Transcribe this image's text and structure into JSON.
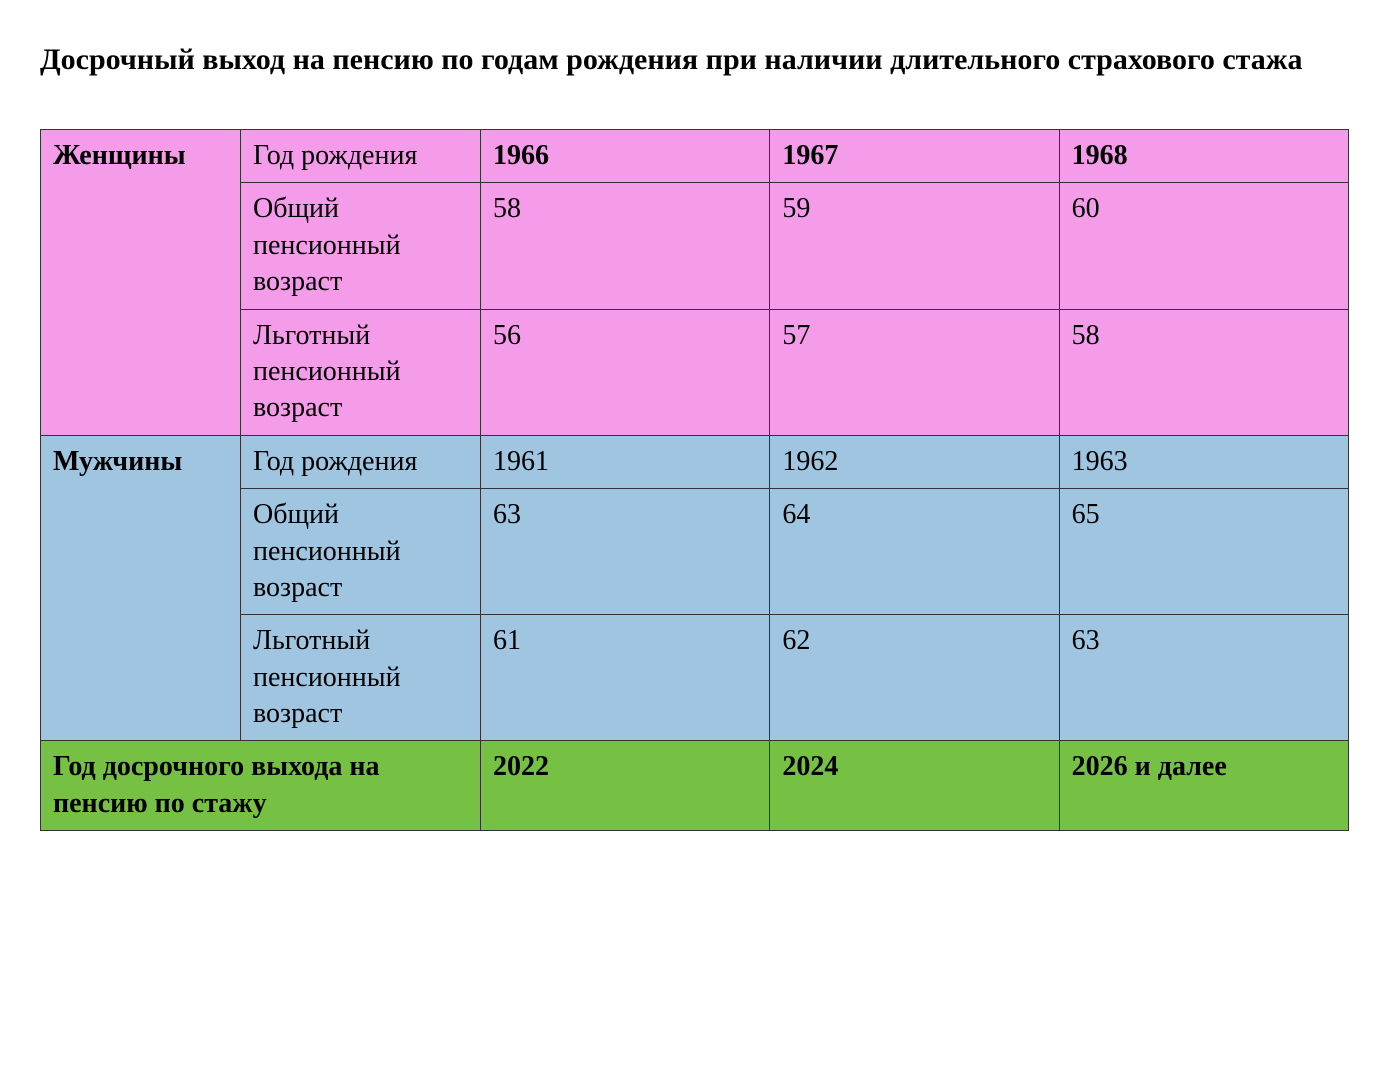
{
  "title": "Досрочный выход на пенсию по годам рождения при наличии длительного страхового стажа",
  "colors": {
    "women_bg": "#f49ce9",
    "men_bg": "#9fc5e1",
    "footer_bg": "#76c043",
    "border": "#333333",
    "text": "#000000",
    "background": "#ffffff"
  },
  "table": {
    "women": {
      "label": "Женщины",
      "rows": {
        "birth_year": {
          "label": "Год рождения",
          "values": [
            "1966",
            "1967",
            "1968"
          ],
          "values_bold": true
        },
        "general_age": {
          "label": "Общий пенсионный возраст",
          "values": [
            "58",
            "59",
            "60"
          ],
          "values_bold": false
        },
        "preferential_age": {
          "label": "Льготный пенсионный возраст",
          "values": [
            "56",
            "57",
            "58"
          ],
          "values_bold": false
        }
      }
    },
    "men": {
      "label": "Мужчины",
      "rows": {
        "birth_year": {
          "label": "Год рождения",
          "values": [
            "1961",
            "1962",
            "1963"
          ],
          "values_bold": false
        },
        "general_age": {
          "label": "Общий пенсионный возраст",
          "values": [
            "63",
            "64",
            "65"
          ],
          "values_bold": false
        },
        "preferential_age": {
          "label": "Льготный пенсионный возраст",
          "values": [
            "61",
            "62",
            "63"
          ],
          "values_bold": false
        }
      }
    },
    "footer": {
      "label": "Год досрочного выхода на пенсию по стажу",
      "values": [
        "2022",
        "2024",
        "2026 и далее"
      ],
      "values_bold": true
    }
  },
  "layout": {
    "title_fontsize": 30,
    "cell_fontsize": 28,
    "col_widths": {
      "category": 200,
      "label": 240
    }
  }
}
